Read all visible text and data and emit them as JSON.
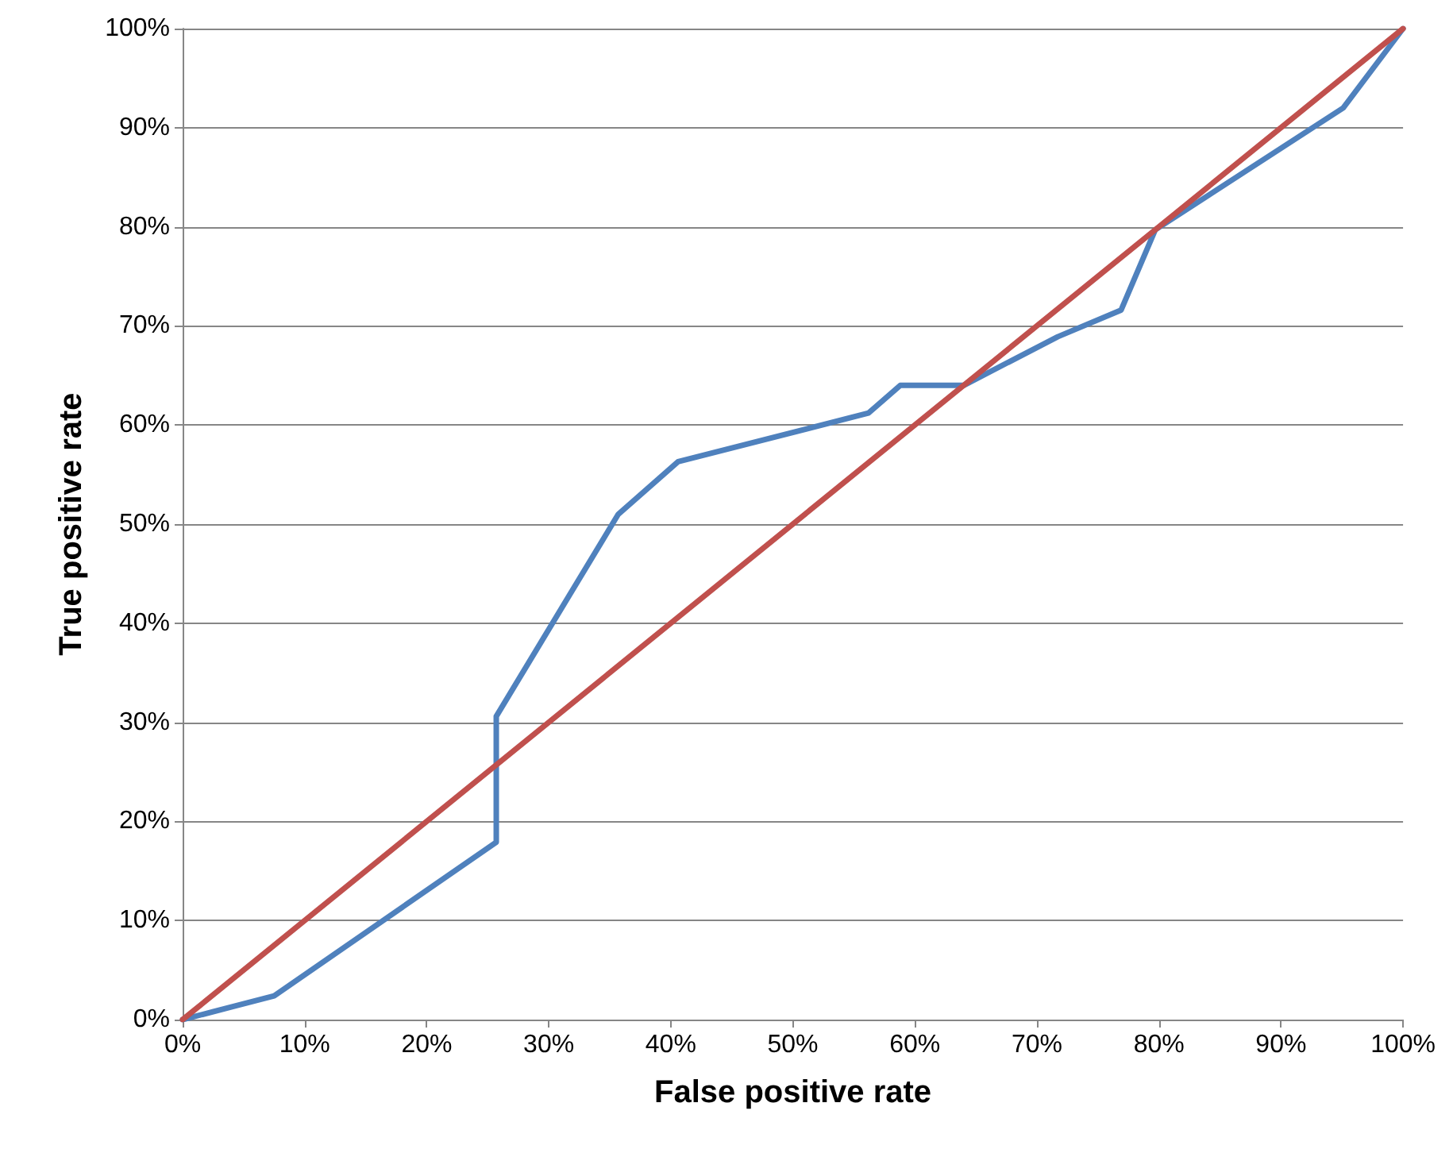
{
  "chart_data": {
    "type": "line",
    "xlabel": "False positive rate",
    "ylabel": "True positive rate",
    "series": [
      {
        "color": "#4f81bd",
        "x": [
          0,
          7.5,
          25.7,
          25.7,
          35.7,
          40.6,
          56.2,
          58.8,
          64.0,
          71.7,
          76.9,
          79.7,
          95.1,
          100
        ],
        "values": [
          0,
          2.4,
          17.9,
          30.6,
          51.0,
          56.3,
          61.2,
          64.0,
          64.0,
          68.9,
          71.6,
          79.7,
          92.0,
          100
        ]
      },
      {
        "color": "#c0504d",
        "x": [
          0,
          100
        ],
        "values": [
          0,
          100
        ]
      }
    ],
    "xlim": [
      0,
      100
    ],
    "ylim": [
      0,
      100
    ],
    "xticks": [
      {
        "value": 0,
        "label": "0%"
      },
      {
        "value": 10,
        "label": "10%"
      },
      {
        "value": 20,
        "label": "20%"
      },
      {
        "value": 30,
        "label": "30%"
      },
      {
        "value": 40,
        "label": "40%"
      },
      {
        "value": 50,
        "label": "50%"
      },
      {
        "value": 60,
        "label": "60%"
      },
      {
        "value": 70,
        "label": "70%"
      },
      {
        "value": 80,
        "label": "80%"
      },
      {
        "value": 90,
        "label": "90%"
      },
      {
        "value": 100,
        "label": "100%"
      }
    ],
    "yticks": [
      {
        "value": 0,
        "label": "0%"
      },
      {
        "value": 10,
        "label": "10%"
      },
      {
        "value": 20,
        "label": "20%"
      },
      {
        "value": 30,
        "label": "30%"
      },
      {
        "value": 40,
        "label": "40%"
      },
      {
        "value": 50,
        "label": "50%"
      },
      {
        "value": 60,
        "label": "60%"
      },
      {
        "value": 70,
        "label": "70%"
      },
      {
        "value": 80,
        "label": "80%"
      },
      {
        "value": 90,
        "label": "90%"
      },
      {
        "value": 100,
        "label": "100%"
      }
    ],
    "grid": "y",
    "marker": "none",
    "line_style": "solid"
  }
}
